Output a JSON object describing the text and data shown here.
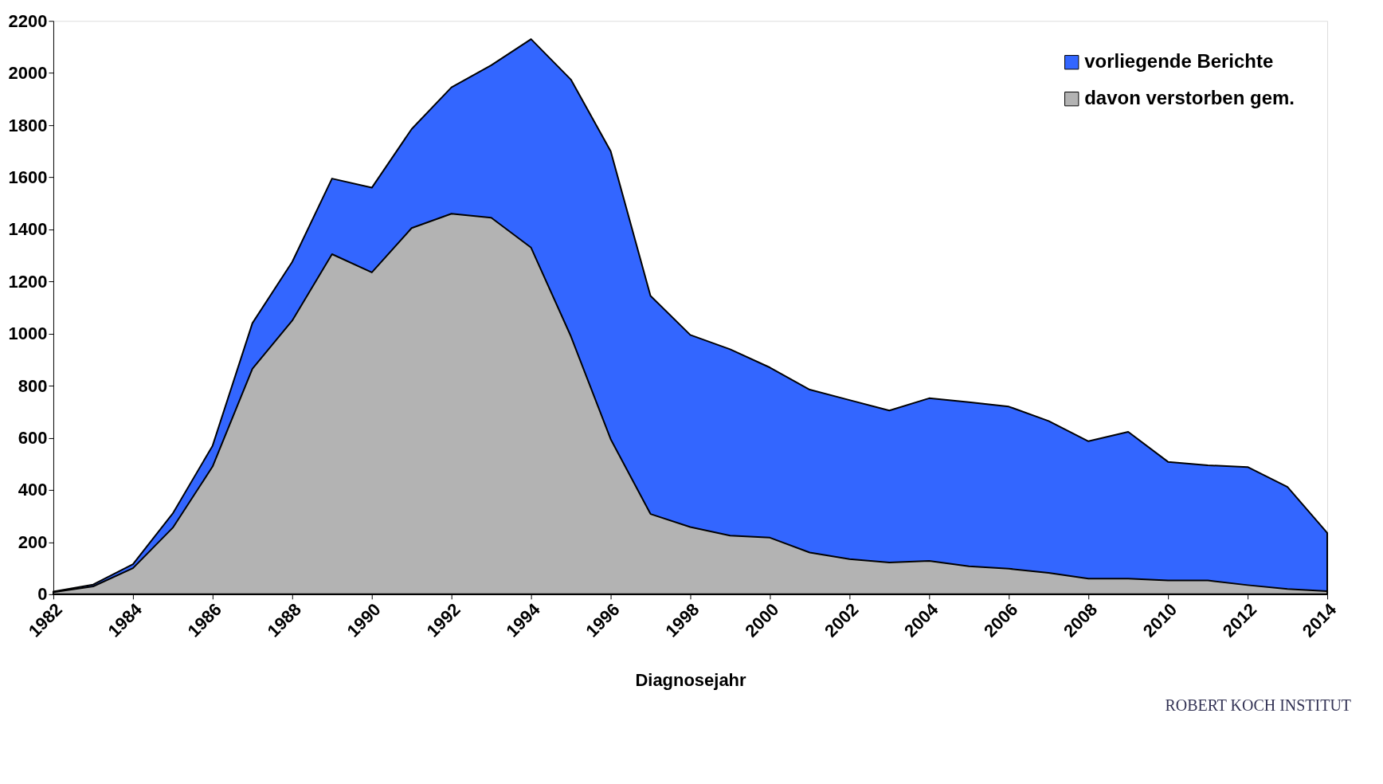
{
  "chart_data": {
    "type": "area",
    "xlabel": "Diagnosejahr",
    "x": [
      1982,
      1983,
      1984,
      1985,
      1986,
      1987,
      1988,
      1989,
      1990,
      1991,
      1992,
      1993,
      1994,
      1995,
      1996,
      1997,
      1998,
      1999,
      2000,
      2001,
      2002,
      2003,
      2004,
      2005,
      2006,
      2007,
      2008,
      2009,
      2010,
      2011,
      2012,
      2013,
      2014
    ],
    "series": [
      {
        "name": "vorliegende Berichte",
        "color": "#3366ff",
        "values": [
          10,
          37,
          115,
          310,
          570,
          1040,
          1275,
          1595,
          1560,
          1785,
          1945,
          2030,
          2130,
          1975,
          1700,
          1145,
          995,
          940,
          870,
          785,
          745,
          705,
          752,
          737,
          720,
          665,
          587,
          623,
          508,
          495,
          488,
          412,
          235
        ]
      },
      {
        "name": "davon verstorben gem.",
        "color": "#b3b3b3",
        "values": [
          8,
          30,
          100,
          255,
          490,
          865,
          1050,
          1305,
          1235,
          1405,
          1460,
          1445,
          1330,
          990,
          595,
          308,
          258,
          225,
          217,
          160,
          135,
          122,
          128,
          107,
          98,
          82,
          60,
          60,
          53,
          53,
          35,
          20,
          12
        ]
      }
    ],
    "xlim": [
      1982,
      2014
    ],
    "xticks": [
      1982,
      1984,
      1986,
      1988,
      1990,
      1992,
      1994,
      1996,
      1998,
      2000,
      2002,
      2004,
      2006,
      2008,
      2010,
      2012,
      2014
    ],
    "ylim": [
      0,
      2200
    ],
    "yticks": [
      0,
      200,
      400,
      600,
      800,
      1000,
      1200,
      1400,
      1600,
      1800,
      2000,
      2200
    ],
    "grid": false,
    "legend": "top right",
    "annotations": [
      "ROBERT KOCH INSTITUT"
    ]
  }
}
